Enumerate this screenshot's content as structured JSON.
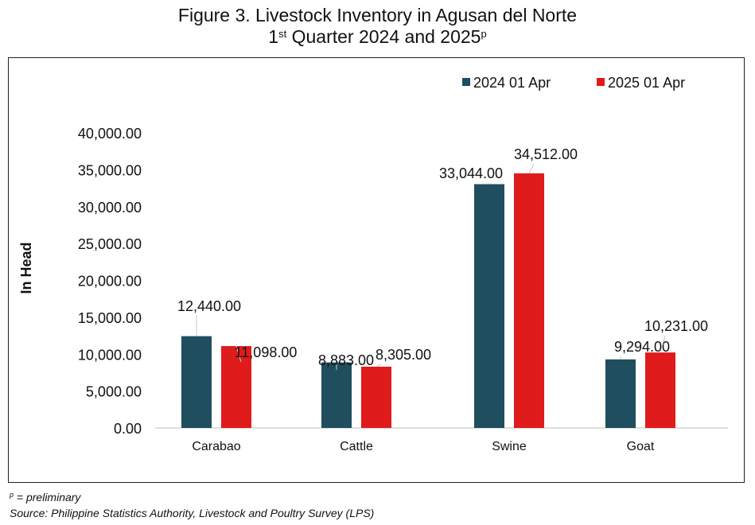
{
  "title_line1": "Figure 3. Livestock Inventory in Agusan del Norte",
  "title_line2": "1",
  "title_line2_sup": "st",
  "title_line2_rest": " Quarter 2024 and 2025",
  "title_line2_mark": "p",
  "footnote_mark": "p",
  "footnote_text": " = preliminary",
  "source": "Source: Philippine Statistics Authority, Livestock and Poultry Survey (LPS)",
  "colors": {
    "series_2024": "#1f4e5f",
    "series_2025": "#e01b1b"
  },
  "chart_data": {
    "type": "bar",
    "ylabel": "In Head",
    "ylim": [
      0,
      40000
    ],
    "yticks": [
      "0.00",
      "5,000.00",
      "10,000.00",
      "15,000.00",
      "20,000.00",
      "25,000.00",
      "30,000.00",
      "35,000.00",
      "40,000.00"
    ],
    "ytick_values": [
      0,
      5000,
      10000,
      15000,
      20000,
      25000,
      30000,
      35000,
      40000
    ],
    "categories": [
      "Carabao",
      "Cattle",
      "Swine",
      "Goat"
    ],
    "legend_position": "top-right",
    "grid": false,
    "series": [
      {
        "name": "2024 01 Apr",
        "values": [
          12440,
          8883,
          33044,
          9294
        ],
        "labels": [
          "12,440.00",
          "8,883.00",
          "33,044.00",
          "9,294.00"
        ]
      },
      {
        "name": "2025 01 Apr",
        "values": [
          11098,
          8305,
          34512,
          10231
        ],
        "labels": [
          "11,098.00",
          "8,305.00",
          "34,512.00",
          "10,231.00"
        ]
      }
    ]
  }
}
